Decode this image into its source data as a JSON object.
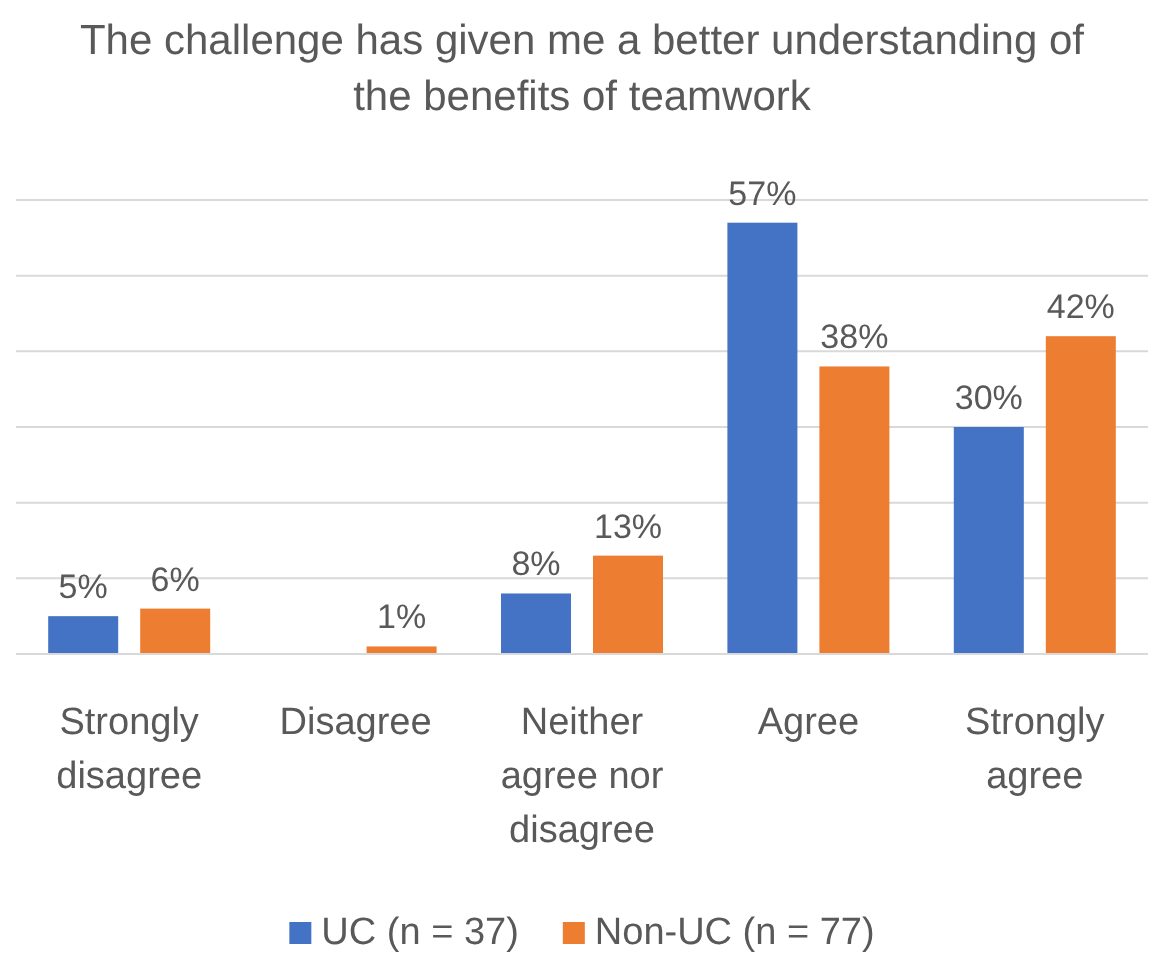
{
  "chart_data": {
    "type": "bar",
    "title": "The challenge has given me a better understanding of the benefits of teamwork",
    "categories": [
      "Strongly disagree",
      "Disagree",
      "Neither agree nor disagree",
      "Agree",
      "Strongly agree"
    ],
    "series": [
      {
        "name": "UC (n = 37)",
        "color": "#4472c4",
        "values": [
          5,
          null,
          8,
          57,
          30
        ],
        "value_labels": [
          "5%",
          null,
          "8%",
          "57%",
          "30%"
        ]
      },
      {
        "name": "Non-UC (n = 77)",
        "color": "#ed7d31",
        "values": [
          6,
          1,
          13,
          38,
          42
        ],
        "value_labels": [
          "6%",
          "1%",
          "13%",
          "38%",
          "42%"
        ]
      }
    ],
    "ylim": [
      0,
      60
    ],
    "yticks": [
      {
        "value": 0,
        "label": null
      },
      {
        "value": 10,
        "label": null
      },
      {
        "value": 20,
        "label": null
      },
      {
        "value": 30,
        "label": null
      },
      {
        "value": 40,
        "label": null
      },
      {
        "value": 50,
        "label": null
      },
      {
        "value": 60,
        "label": null
      }
    ],
    "tick_labels": "x",
    "grid": "y",
    "legend": "bottom"
  }
}
